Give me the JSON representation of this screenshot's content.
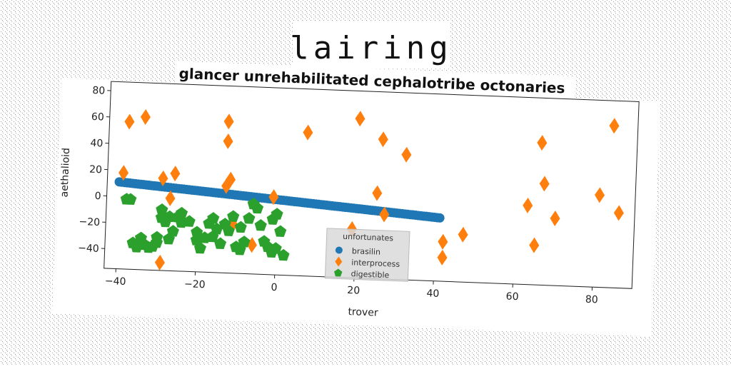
{
  "figure": {
    "suptitle": "lairing"
  },
  "chart_data": {
    "type": "scatter",
    "title": "glancer unrehabilitated cephalotribe octonaries",
    "xlabel": "trover",
    "ylabel": "aethalioid",
    "xlim": [
      -43,
      90
    ],
    "ylim": [
      -55,
      87
    ],
    "xticks": [
      -40,
      -20,
      0,
      20,
      40,
      60,
      80
    ],
    "yticks": [
      -40,
      -20,
      0,
      20,
      40,
      60,
      80
    ],
    "grid": false,
    "legend": {
      "title": "unfortunates",
      "placement": "lower-center"
    },
    "series": [
      {
        "name": "brasilin",
        "color": "#1f77b4",
        "marker": "circle",
        "line_from": [
          -40,
          11
        ],
        "line_to": [
          41,
          -7
        ],
        "points_count": 120
      },
      {
        "name": "interprocess",
        "color": "#ff7f0e",
        "marker": "diamond",
        "points": [
          [
            -39,
            18
          ],
          [
            -38,
            57
          ],
          [
            -34,
            61
          ],
          [
            -29,
            15
          ],
          [
            -27,
            0
          ],
          [
            -26,
            19
          ],
          [
            -29,
            -49
          ],
          [
            -13,
            60
          ],
          [
            -13,
            45
          ],
          [
            -13,
            11
          ],
          [
            -12,
            16
          ],
          [
            -11,
            -18
          ],
          [
            -6,
            -33
          ],
          [
            -1,
            4
          ],
          [
            7,
            54
          ],
          [
            19,
            -18
          ],
          [
            20,
            66
          ],
          [
            25,
            10
          ],
          [
            26,
            51
          ],
          [
            27,
            -6
          ],
          [
            32,
            40
          ],
          [
            42,
            -25
          ],
          [
            42,
            -37
          ],
          [
            47,
            -19
          ],
          [
            63,
            5
          ],
          [
            65,
            -25
          ],
          [
            66,
            53
          ],
          [
            67,
            22
          ],
          [
            70,
            -4
          ],
          [
            81,
            15
          ],
          [
            84,
            68
          ],
          [
            86,
            2
          ]
        ]
      },
      {
        "name": "digestible",
        "color": "#2ca02c",
        "marker": "pentagon",
        "points": [
          [
            -38,
            -2
          ],
          [
            -37,
            -2
          ],
          [
            -36,
            -35
          ],
          [
            -35,
            -38
          ],
          [
            -34,
            -31
          ],
          [
            -33,
            -36
          ],
          [
            -32,
            -38
          ],
          [
            -31,
            -37
          ],
          [
            -30,
            -30
          ],
          [
            -30,
            -34
          ],
          [
            -29,
            -9
          ],
          [
            -29,
            -15
          ],
          [
            -28,
            -18
          ],
          [
            -27,
            -31
          ],
          [
            -26,
            -25
          ],
          [
            -25,
            -14
          ],
          [
            -24,
            -11
          ],
          [
            -24,
            -18
          ],
          [
            -22,
            -17
          ],
          [
            -20,
            -31
          ],
          [
            -19,
            -37
          ],
          [
            -18,
            -29
          ],
          [
            -17,
            -18
          ],
          [
            -16,
            -28
          ],
          [
            -15,
            -22
          ],
          [
            -14,
            -33
          ],
          [
            -13,
            -18
          ],
          [
            -12,
            -23
          ],
          [
            -11,
            -12
          ],
          [
            -10,
            -35
          ],
          [
            -9,
            -37
          ],
          [
            -8,
            -31
          ],
          [
            -7,
            -13
          ],
          [
            -6,
            -2
          ],
          [
            -5,
            -5
          ],
          [
            -4,
            -18
          ],
          [
            -3,
            -30
          ],
          [
            -2,
            -34
          ],
          [
            -1,
            -38
          ],
          [
            -1,
            -13
          ],
          [
            0,
            -35
          ],
          [
            0,
            -9
          ],
          [
            1,
            -22
          ],
          [
            2,
            -40
          ],
          [
            -16,
            -14
          ],
          [
            -20,
            -25
          ],
          [
            -27,
            -14
          ],
          [
            -9,
            -20
          ]
        ]
      }
    ]
  }
}
